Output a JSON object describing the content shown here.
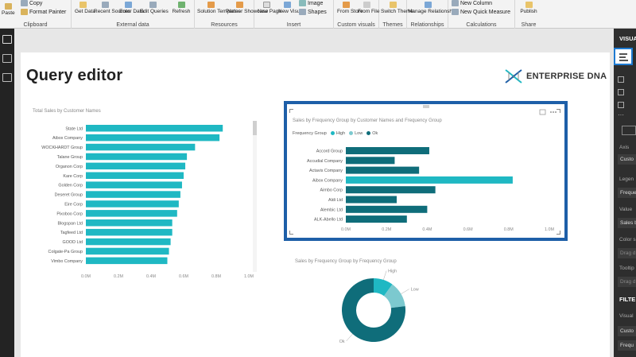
{
  "ribbon": {
    "clipboard": {
      "paste": "Paste",
      "copy": "Copy",
      "format_painter": "Format Painter",
      "group": "Clipboard"
    },
    "external": {
      "get_data": "Get Data",
      "recent_sources": "Recent Sources",
      "enter_data": "Enter Data",
      "edit_queries": "Edit Queries",
      "refresh": "Refresh",
      "group": "External data"
    },
    "resources": {
      "solution_templates": "Solution Templates",
      "partner_showcase": "Partner Showcase",
      "group": "Resources"
    },
    "insert": {
      "new_page": "New Page",
      "new_visual": "New Visual",
      "image": "Image",
      "shapes": "Shapes",
      "group": "Insert"
    },
    "custom_visuals": {
      "from_store": "From Store",
      "from_file": "From File",
      "group": "Custom visuals"
    },
    "themes": {
      "switch_theme": "Switch Theme",
      "group": "Themes"
    },
    "relationships": {
      "manage": "Manage Relationships",
      "group": "Relationships"
    },
    "calculations": {
      "new_column": "New Column",
      "new_quick_measure": "New Quick Measure",
      "group": "Calculations"
    },
    "share": {
      "publish": "Publish",
      "group": "Share"
    }
  },
  "page": {
    "title": "Query editor",
    "brand": "ENTERPRISE DNA"
  },
  "right_pane": {
    "visual_header": "VISUA",
    "axis": "Axis",
    "axis_value": "Custo",
    "legend": "Legen",
    "legend_value": "Freque",
    "value": "Value",
    "value_value": "Sales b",
    "color": "Color s",
    "drag1": "Drag d",
    "tooltips": "Tooltip",
    "drag2": "Drag d",
    "filters_header": "FILTE",
    "visual_level": "Visual",
    "filter1": "Custo",
    "filter2": "Frequ"
  },
  "colors": {
    "teal": "#1fb8c3",
    "dark_teal": "#0f6d7a",
    "mid_teal": "#2aa6b0",
    "light_teal": "#7cc9cf",
    "selection": "#1e5fa8"
  },
  "chart_data": [
    {
      "type": "bar",
      "orientation": "horizontal",
      "title": "Total Sales by Customer Names",
      "categories": [
        "State Ltd",
        "Aibox Company",
        "WOCKHARDT Group",
        "Talane Group",
        "Organon Corp",
        "Kare Corp",
        "Golden Corp",
        "Deseret Group",
        "Eire Corp",
        "Pixoboo Corp",
        "Blogspan Ltd",
        "Tagfeed Ltd",
        "GOOD Ltd",
        "Colgate-Pa Group",
        "Vimbo Company"
      ],
      "values": [
        0.84,
        0.82,
        0.67,
        0.62,
        0.61,
        0.6,
        0.59,
        0.58,
        0.57,
        0.56,
        0.53,
        0.53,
        0.52,
        0.51,
        0.5
      ],
      "xticks": [
        "0.0M",
        "0.2M",
        "0.4M",
        "0.6M",
        "0.8M",
        "1.0M"
      ],
      "xlim": [
        0,
        1.0
      ]
    },
    {
      "type": "bar",
      "orientation": "horizontal",
      "title": "Sales by Frequency Group by Customer Names and Frequency Group",
      "legend_title": "Frequency Group",
      "legend": [
        {
          "name": "High",
          "color": "#1fb8c3"
        },
        {
          "name": "Low",
          "color": "#7cc9cf"
        },
        {
          "name": "Ok",
          "color": "#0f6d7a"
        }
      ],
      "categories": [
        "Accord Group",
        "Accudial Company",
        "Actavis Company",
        "Aibox Company",
        "Aimbo Corp",
        "Aldi Ltd",
        "Alembic Ltd",
        "ALK-Abello Ltd"
      ],
      "series_per_bar": [
        "Ok",
        "Ok",
        "Ok",
        "High",
        "Ok",
        "Ok",
        "Ok",
        "Ok"
      ],
      "values": [
        0.41,
        0.24,
        0.36,
        0.82,
        0.44,
        0.25,
        0.4,
        0.3
      ],
      "xticks": [
        "0.0M",
        "0.2M",
        "0.4M",
        "0.6M",
        "0.8M",
        "1.0M"
      ],
      "xlim": [
        0,
        1.0
      ]
    },
    {
      "type": "pie",
      "donut": true,
      "title": "Sales by Frequency Group by Frequency Group",
      "slices": [
        {
          "label": "High",
          "value": 10,
          "color": "#1fb8c3"
        },
        {
          "label": "Low",
          "value": 13,
          "color": "#7cc9cf"
        },
        {
          "label": "Ok",
          "value": 77,
          "color": "#0f6d7a"
        }
      ]
    }
  ]
}
